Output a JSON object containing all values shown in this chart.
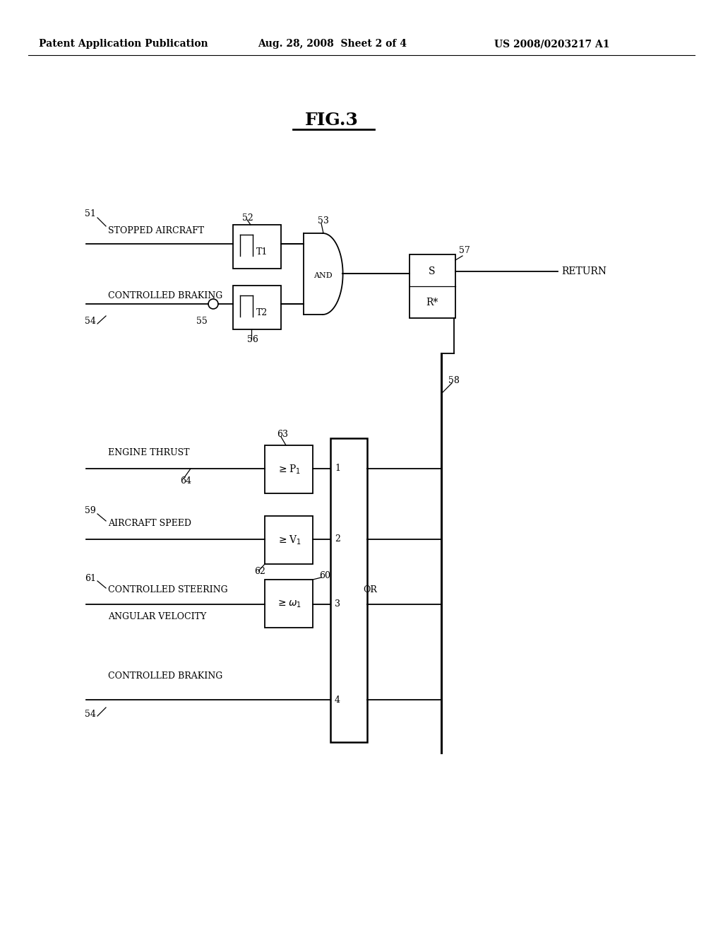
{
  "bg_color": "#ffffff",
  "line_color": "#000000",
  "header_left": "Patent Application Publication",
  "header_mid": "Aug. 28, 2008  Sheet 2 of 4",
  "header_right": "US 2008/0203217 A1",
  "title": "FIG.3",
  "labels": {
    "51": "51",
    "52": "52",
    "53": "53",
    "54": "54",
    "55": "55",
    "56": "56",
    "57": "57",
    "58": "58",
    "59": "59",
    "60": "60",
    "61": "61",
    "62": "62",
    "63": "63",
    "64": "64",
    "T1": "T1",
    "T2": "T2",
    "AND": "AND",
    "OR": "OR",
    "S": "S",
    "R*": "R*",
    "RETURN": "RETURN",
    "STOPPED_AIRCRAFT": "STOPPED AIRCRAFT",
    "CONTROLLED_BRAKING": "CONTROLLED BRAKING",
    "ENGINE_THRUST": "ENGINE THRUST",
    "AIRCRAFT_SPEED": "AIRCRAFT SPEED",
    "CONTROLLED_STEERING": "CONTROLLED STEERING",
    "ANGULAR_VELOCITY": "ANGULAR VELOCITY"
  }
}
